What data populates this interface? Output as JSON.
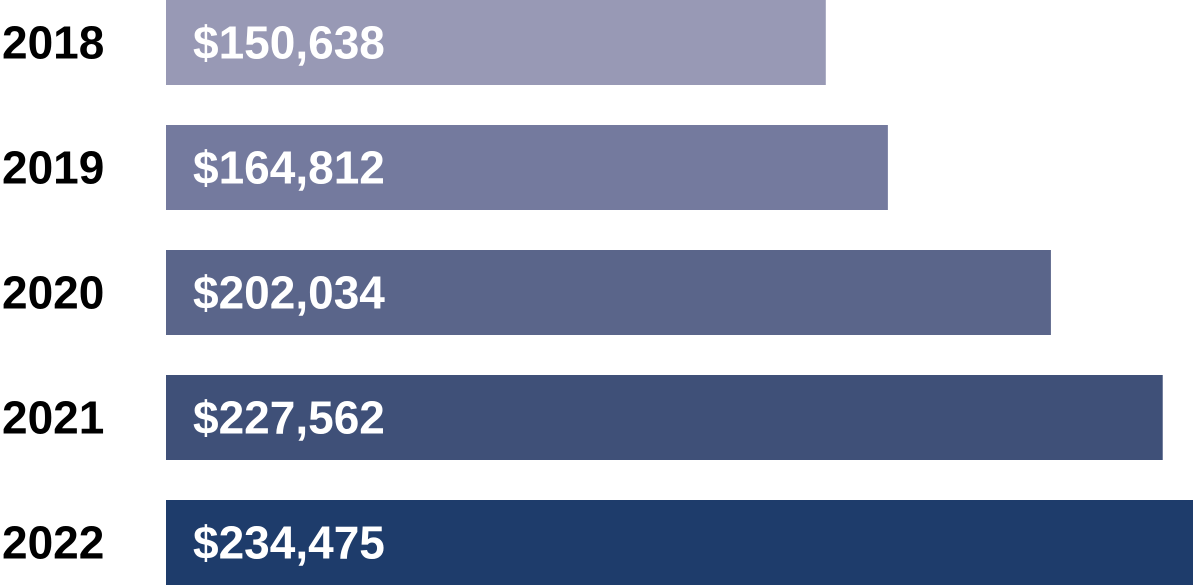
{
  "chart_data": {
    "type": "bar",
    "orientation": "horizontal",
    "categories": [
      "2018",
      "2019",
      "2020",
      "2021",
      "2022"
    ],
    "values": [
      150638,
      164812,
      202034,
      227562,
      234475
    ],
    "data_labels": [
      "$150,638",
      "$164,812",
      "$202,034",
      "$227,562",
      "$234,475"
    ],
    "colors": [
      "#9899b5",
      "#747a9e",
      "#5a658a",
      "#3f5078",
      "#1e3c6b"
    ],
    "title": "",
    "xlabel": "",
    "ylabel": "",
    "grid": false,
    "legend": "none"
  }
}
